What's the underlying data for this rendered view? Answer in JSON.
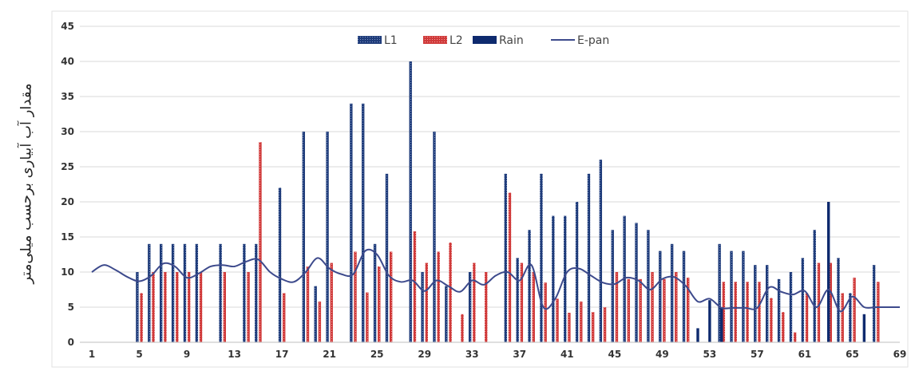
{
  "chart_data": {
    "type": "bar",
    "ylabel": "مقدار آب آبیاری برحسب میلی‌متر",
    "ylim": [
      0,
      45
    ],
    "yticks": [
      0,
      5,
      10,
      15,
      20,
      25,
      30,
      35,
      40,
      45
    ],
    "xlim": [
      1,
      69
    ],
    "xticks": [
      1,
      5,
      9,
      13,
      17,
      21,
      25,
      29,
      33,
      37,
      41,
      45,
      49,
      53,
      57,
      61,
      65,
      69
    ],
    "grid": "horizontal",
    "legend_position": "top-center",
    "series": [
      {
        "name": "L1",
        "kind": "bar",
        "color": "#1f3c7a",
        "points": [
          [
            5,
            10
          ],
          [
            6,
            14
          ],
          [
            7,
            14
          ],
          [
            8,
            14
          ],
          [
            9,
            14
          ],
          [
            10,
            14
          ],
          [
            12,
            14
          ],
          [
            14,
            14
          ],
          [
            15,
            14
          ],
          [
            17,
            22
          ],
          [
            19,
            30
          ],
          [
            20,
            8
          ],
          [
            21,
            30
          ],
          [
            23,
            34
          ],
          [
            24,
            34
          ],
          [
            25,
            14
          ],
          [
            26,
            24
          ],
          [
            28,
            40
          ],
          [
            29,
            10
          ],
          [
            30,
            30
          ],
          [
            31,
            8
          ],
          [
            33,
            10
          ],
          [
            36,
            24
          ],
          [
            37,
            12
          ],
          [
            38,
            16
          ],
          [
            39,
            24
          ],
          [
            40,
            18
          ],
          [
            41,
            18
          ],
          [
            42,
            20
          ],
          [
            43,
            24
          ],
          [
            44,
            26
          ],
          [
            45,
            16
          ],
          [
            46,
            18
          ],
          [
            47,
            17
          ],
          [
            48,
            16
          ],
          [
            49,
            13
          ],
          [
            50,
            14
          ],
          [
            51,
            13
          ],
          [
            54,
            14
          ],
          [
            55,
            13
          ],
          [
            56,
            13
          ],
          [
            57,
            11
          ],
          [
            58,
            11
          ],
          [
            59,
            9
          ],
          [
            60,
            10
          ],
          [
            61,
            12
          ],
          [
            62,
            16
          ],
          [
            64,
            12
          ],
          [
            65,
            7
          ],
          [
            67,
            11
          ]
        ]
      },
      {
        "name": "L2",
        "kind": "bar",
        "color": "#d03a3a",
        "points": [
          [
            5,
            7
          ],
          [
            6,
            10
          ],
          [
            7,
            10
          ],
          [
            8,
            10
          ],
          [
            9,
            10
          ],
          [
            10,
            10
          ],
          [
            12,
            10
          ],
          [
            14,
            10
          ],
          [
            15,
            28.5
          ],
          [
            17,
            7
          ],
          [
            19,
            10.8
          ],
          [
            20,
            5.8
          ],
          [
            21,
            11.3
          ],
          [
            23,
            12.9
          ],
          [
            24,
            7.1
          ],
          [
            25,
            10.8
          ],
          [
            26,
            12.9
          ],
          [
            28,
            15.8
          ],
          [
            29,
            11.3
          ],
          [
            30,
            12.9
          ],
          [
            31,
            14.2
          ],
          [
            32,
            4
          ],
          [
            33,
            11.3
          ],
          [
            34,
            10
          ],
          [
            36,
            21.3
          ],
          [
            37,
            11.3
          ],
          [
            38,
            10
          ],
          [
            39,
            8.5
          ],
          [
            40,
            6.2
          ],
          [
            41,
            4.2
          ],
          [
            42,
            5.8
          ],
          [
            43,
            4.3
          ],
          [
            44,
            5
          ],
          [
            45,
            10
          ],
          [
            46,
            9
          ],
          [
            47,
            9
          ],
          [
            48,
            10
          ],
          [
            49,
            9
          ],
          [
            50,
            10
          ],
          [
            51,
            9.2
          ],
          [
            54,
            8.6
          ],
          [
            55,
            8.6
          ],
          [
            56,
            8.6
          ],
          [
            57,
            8.6
          ],
          [
            58,
            6.3
          ],
          [
            59,
            4.3
          ],
          [
            60,
            1.4
          ],
          [
            61,
            7
          ],
          [
            62,
            11.3
          ],
          [
            63,
            11.3
          ],
          [
            64,
            7
          ],
          [
            65,
            9.2
          ],
          [
            67,
            8.6
          ]
        ]
      },
      {
        "name": "Rain",
        "kind": "bar",
        "color": "#0e2a6e",
        "points": [
          [
            52,
            2
          ],
          [
            53,
            6
          ],
          [
            54,
            5
          ],
          [
            63,
            20
          ],
          [
            66,
            4
          ]
        ]
      },
      {
        "name": "E-pan",
        "kind": "line",
        "color": "#3d4a8c",
        "points": [
          [
            1,
            10
          ],
          [
            2,
            11
          ],
          [
            3,
            10.3
          ],
          [
            4,
            9.3
          ],
          [
            5,
            8.7
          ],
          [
            6,
            9.5
          ],
          [
            7,
            11.2
          ],
          [
            8,
            10.8
          ],
          [
            9,
            9.2
          ],
          [
            10,
            9.8
          ],
          [
            11,
            10.8
          ],
          [
            12,
            11
          ],
          [
            13,
            10.8
          ],
          [
            14,
            11.5
          ],
          [
            15,
            11.8
          ],
          [
            16,
            10
          ],
          [
            17,
            9
          ],
          [
            18,
            8.6
          ],
          [
            19,
            10
          ],
          [
            20,
            12
          ],
          [
            21,
            10.5
          ],
          [
            22,
            9.7
          ],
          [
            23,
            9.7
          ],
          [
            24,
            13
          ],
          [
            25,
            12.5
          ],
          [
            26,
            9.5
          ],
          [
            27,
            8.6
          ],
          [
            28,
            8.8
          ],
          [
            29,
            7.3
          ],
          [
            30,
            8.8
          ],
          [
            31,
            8
          ],
          [
            32,
            7.2
          ],
          [
            33,
            8.8
          ],
          [
            34,
            8.2
          ],
          [
            35,
            9.5
          ],
          [
            36,
            10
          ],
          [
            37,
            8.8
          ],
          [
            38,
            11
          ],
          [
            39,
            5
          ],
          [
            40,
            6.2
          ],
          [
            41,
            10
          ],
          [
            42,
            10.5
          ],
          [
            43,
            9.5
          ],
          [
            44,
            8.5
          ],
          [
            45,
            8.3
          ],
          [
            46,
            9.2
          ],
          [
            47,
            8.8
          ],
          [
            48,
            7.5
          ],
          [
            49,
            9
          ],
          [
            50,
            9.3
          ],
          [
            51,
            8
          ],
          [
            52,
            5.8
          ],
          [
            53,
            6.2
          ],
          [
            54,
            4.9
          ],
          [
            55,
            4.9
          ],
          [
            56,
            4.9
          ],
          [
            57,
            4.9
          ],
          [
            58,
            7.8
          ],
          [
            59,
            7.2
          ],
          [
            60,
            6.8
          ],
          [
            61,
            7.3
          ],
          [
            62,
            5
          ],
          [
            63,
            7.5
          ],
          [
            64,
            4.4
          ],
          [
            65,
            6.5
          ],
          [
            66,
            5
          ],
          [
            67,
            5
          ],
          [
            68,
            5
          ],
          [
            69,
            5
          ]
        ]
      }
    ]
  }
}
